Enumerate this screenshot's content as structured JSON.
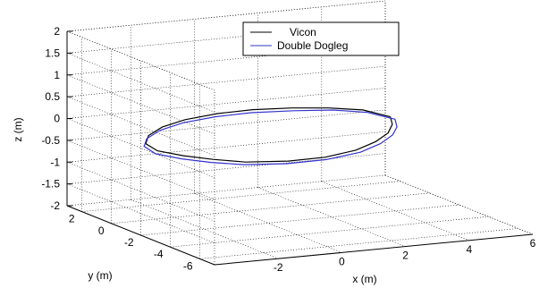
{
  "chart_data": {
    "type": "line",
    "projection": "3d",
    "grid": true,
    "legend_position": "top-center",
    "zlabel": "z (m)",
    "ylabel": "y (m)",
    "xlabel": "x (m)",
    "xlim": [
      -4,
      6
    ],
    "ylim": [
      -7,
      3
    ],
    "zlim": [
      -2,
      2
    ],
    "z_ticks": [
      "2",
      "1.5",
      "1",
      "0.5",
      "0",
      "-0.5",
      "-1",
      "-1.5",
      "-2"
    ],
    "y_ticks": [
      "2",
      "0",
      "-2",
      "-4",
      "-6"
    ],
    "x_ticks": [
      "-2",
      "0",
      "2",
      "4",
      "6"
    ],
    "series": [
      {
        "name": "Vicon",
        "color": "#000000",
        "x": [
          5.0,
          4.6,
          3.8,
          2.8,
          1.6,
          0.4,
          -0.8,
          -1.8,
          -2.6,
          -3.1,
          -3.2,
          -2.8,
          -2.2,
          -1.4,
          -0.2,
          1.0,
          2.2,
          3.2,
          4.0,
          4.6,
          5.0
        ],
        "y": [
          0.5,
          1.5,
          2.1,
          2.4,
          2.5,
          2.3,
          1.9,
          1.3,
          0.5,
          -0.4,
          -1.4,
          -2.3,
          -3.0,
          -3.5,
          -3.8,
          -3.7,
          -3.2,
          -2.4,
          -1.5,
          -0.5,
          0.5
        ],
        "z": [
          -0.25,
          -0.2,
          -0.18,
          -0.15,
          -0.12,
          -0.1,
          -0.1,
          -0.12,
          -0.15,
          -0.18,
          -0.2,
          -0.22,
          -0.25,
          -0.3,
          -0.32,
          -0.33,
          -0.32,
          -0.3,
          -0.28,
          -0.26,
          -0.25
        ]
      },
      {
        "name": "Double Dogleg",
        "color": "#3333cc",
        "x": [
          5.1,
          4.7,
          3.9,
          2.8,
          1.5,
          0.3,
          -0.9,
          -1.9,
          -2.7,
          -3.2,
          -3.3,
          -2.9,
          -2.3,
          -1.5,
          -0.3,
          1.0,
          2.3,
          3.3,
          4.1,
          4.7,
          5.1
        ],
        "y": [
          0.4,
          1.4,
          2.0,
          2.3,
          2.4,
          2.2,
          1.8,
          1.2,
          0.4,
          -0.5,
          -1.5,
          -2.4,
          -3.1,
          -3.6,
          -3.9,
          -3.8,
          -3.3,
          -2.5,
          -1.6,
          -0.6,
          0.4
        ],
        "z": [
          -0.3,
          -0.25,
          -0.22,
          -0.2,
          -0.17,
          -0.15,
          -0.15,
          -0.17,
          -0.2,
          -0.22,
          -0.25,
          -0.27,
          -0.3,
          -0.34,
          -0.36,
          -0.37,
          -0.36,
          -0.34,
          -0.32,
          -0.31,
          -0.3
        ]
      }
    ]
  }
}
